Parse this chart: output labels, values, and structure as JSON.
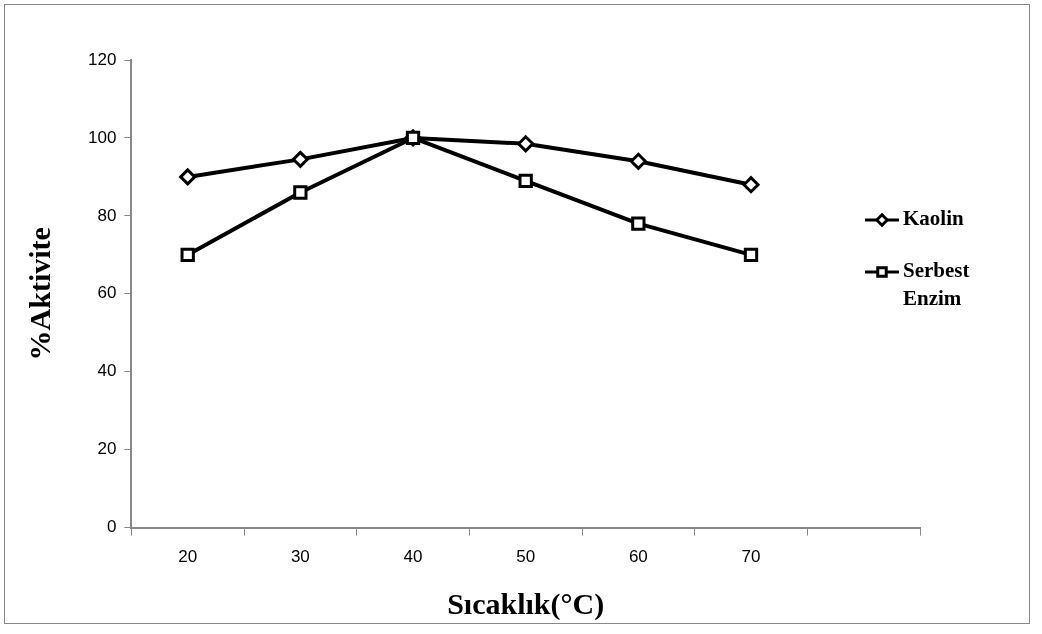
{
  "chart_data": {
    "type": "line",
    "xlabel": "Sıcaklık(°C)",
    "ylabel": "%Aktivite",
    "categories": [
      "20",
      "30",
      "40",
      "50",
      "60",
      "70",
      null
    ],
    "series": [
      {
        "name": "Kaolin",
        "color": "#000000",
        "marker": "diamond",
        "values": [
          90,
          94.5,
          100,
          98.5,
          94,
          88,
          null
        ]
      },
      {
        "name": "Serbest Enzim",
        "color": "#000000",
        "marker": "square",
        "values": [
          70,
          86,
          100,
          89,
          78,
          70,
          null
        ]
      }
    ],
    "ylim": [
      0,
      120
    ],
    "yticks": [
      0,
      20,
      40,
      60,
      80,
      100,
      120
    ],
    "grid": false,
    "legend": "right",
    "line_style": "solid"
  }
}
